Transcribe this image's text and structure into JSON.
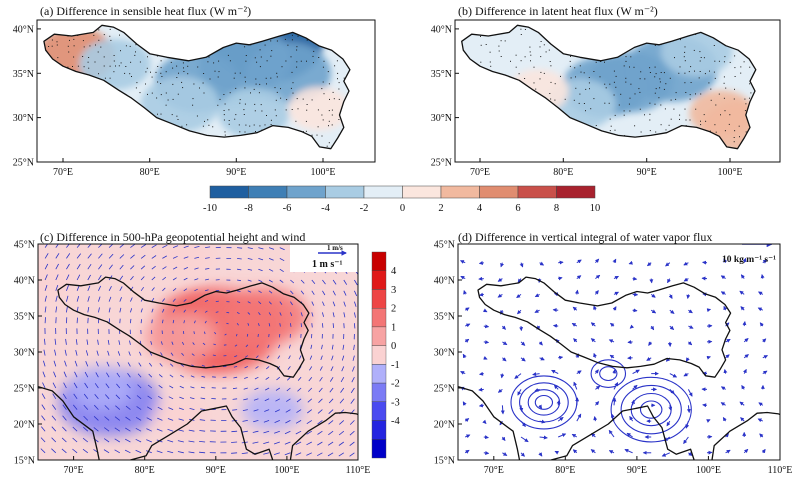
{
  "chart_data": [
    {
      "type": "heatmap",
      "title": "(a) Difference in sensible heat flux (W m⁻²)",
      "x_ticks": [
        "70°E",
        "80°E",
        "90°E",
        "100°E"
      ],
      "y_ticks": [
        "25°N",
        "30°N",
        "35°N",
        "40°N"
      ],
      "xlim": [
        67,
        106
      ],
      "ylim": [
        25,
        41
      ],
      "regions": [
        {
          "lon": 90,
          "lat": 34.5,
          "value": -4
        },
        {
          "lon": 93.5,
          "lat": 38.5,
          "value": -9
        },
        {
          "lon": 91,
          "lat": 36.5,
          "value": -6
        },
        {
          "lon": 85.5,
          "lat": 34,
          "value": -5
        },
        {
          "lon": 96,
          "lat": 35,
          "value": -5
        },
        {
          "lon": 83.5,
          "lat": 31.5,
          "value": -4
        },
        {
          "lon": 92,
          "lat": 30.5,
          "value": -3
        },
        {
          "lon": 71.5,
          "lat": 37,
          "value": 4
        },
        {
          "lon": 76,
          "lat": 36,
          "value": -3
        },
        {
          "lon": 99.5,
          "lat": 31,
          "value": 1.5
        }
      ]
    },
    {
      "type": "heatmap",
      "title": "(b) Difference in latent heat flux (W m⁻²)",
      "x_ticks": [
        "70°E",
        "80°E",
        "90°E",
        "100°E"
      ],
      "y_ticks": [
        "25°N",
        "30°N",
        "35°N",
        "40°N"
      ],
      "xlim": [
        67,
        106
      ],
      "ylim": [
        25,
        41
      ],
      "regions": [
        {
          "lon": 88,
          "lat": 34,
          "value": -5
        },
        {
          "lon": 93,
          "lat": 35.5,
          "value": -6
        },
        {
          "lon": 85,
          "lat": 33.5,
          "value": -5
        },
        {
          "lon": 96,
          "lat": 37.5,
          "value": -3
        },
        {
          "lon": 82,
          "lat": 31.5,
          "value": -3
        },
        {
          "lon": 74,
          "lat": 37,
          "value": -1
        },
        {
          "lon": 99,
          "lat": 30.5,
          "value": 2
        },
        {
          "lon": 101,
          "lat": 29,
          "value": 3
        },
        {
          "lon": 77,
          "lat": 33,
          "value": 1.5
        }
      ]
    },
    {
      "type": "heatmap",
      "title": "(c) Difference in 500-hPa geopotential height and wind",
      "reference_vector": [
        "1 m/s",
        "1 m s⁻¹"
      ],
      "x_ticks": [
        "70°E",
        "80°E",
        "90°E",
        "100°E",
        "110°E"
      ],
      "y_ticks": [
        "15°N",
        "20°N",
        "25°N",
        "30°N",
        "35°N",
        "40°N",
        "45°N"
      ],
      "xlim": [
        65,
        110
      ],
      "ylim": [
        15,
        45
      ],
      "colorbar_ticks": [
        "4",
        "3",
        "2",
        "1",
        "0",
        "-1",
        "-2",
        "-3",
        "-4"
      ],
      "regions": [
        {
          "lon": 90,
          "lat": 33,
          "value": 3.2
        },
        {
          "lon": 97,
          "lat": 35,
          "value": 1.6
        },
        {
          "lon": 93,
          "lat": 34,
          "value": 2.2
        },
        {
          "lon": 85,
          "lat": 32,
          "value": 1.2
        },
        {
          "lon": 75,
          "lat": 23,
          "value": -2.2
        },
        {
          "lon": 74,
          "lat": 25,
          "value": -0.8
        },
        {
          "lon": 98,
          "lat": 22,
          "value": -0.7
        },
        {
          "lon": 85,
          "lat": 21,
          "value": -0.5
        },
        {
          "lon": 66,
          "lat": 40,
          "value": -0.4
        },
        {
          "lon": 86,
          "lat": 43,
          "value": -0.4
        }
      ]
    },
    {
      "type": "scatter",
      "title": "(d) Difference in vertical integral of water vapor flux",
      "reference_vector": "10 kg m⁻¹ s⁻¹",
      "x_ticks": [
        "70°E",
        "80°E",
        "90°E",
        "100°E",
        "110°E"
      ],
      "y_ticks": [
        "15°N",
        "20°N",
        "25°N",
        "30°N",
        "35°N",
        "40°N",
        "45°N"
      ],
      "xlim": [
        65,
        110
      ],
      "ylim": [
        15,
        45
      ]
    }
  ],
  "colorbar_ab": {
    "labels": [
      "-10",
      "-8",
      "-6",
      "-4",
      "-2",
      "0",
      "2",
      "4",
      "6",
      "8",
      "10"
    ],
    "colors": [
      "#1f5fa0",
      "#3f7fb5",
      "#6fa3cc",
      "#a9cce3",
      "#e3eef6",
      "#fbe6de",
      "#f1b99f",
      "#e08d70",
      "#c9504a",
      "#a8222e"
    ]
  },
  "colorbar_c": {
    "colors": [
      "#0000c8",
      "#2424e0",
      "#4a4af0",
      "#7b7bf5",
      "#b0b0fa",
      "#fad2d2",
      "#f7a3a3",
      "#f37575",
      "#ee4545",
      "#e01919",
      "#c80000"
    ]
  }
}
